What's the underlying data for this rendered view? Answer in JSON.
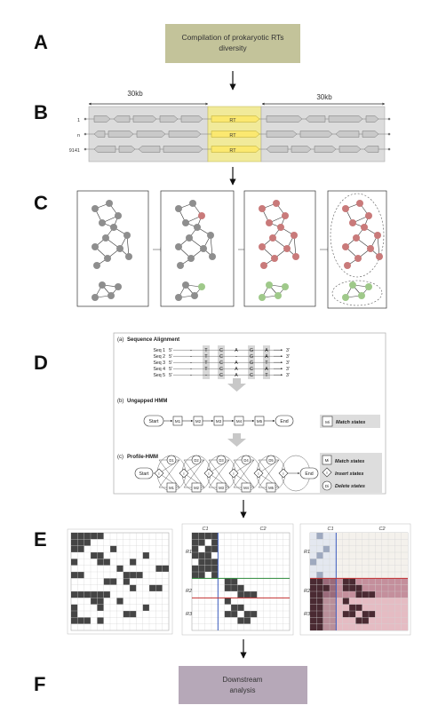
{
  "panels": {
    "a": {
      "letter": "A",
      "text_line1": "Compilation of prokaryotic RTs",
      "text_line2": "diversity",
      "box_color": "#c3c39a"
    },
    "b": {
      "letter": "B",
      "scale_left": "30kb",
      "scale_right": "30kb",
      "rows": [
        {
          "label": "1",
          "rt": "RT"
        },
        {
          "label": "n",
          "rt": "RT"
        },
        {
          "label": "9141",
          "rt": "RT"
        }
      ],
      "rt_color": "#f1ea9a"
    },
    "c": {
      "letter": "C"
    },
    "d": {
      "letter": "D",
      "sec_a": "(a)",
      "sec_a_title": "Sequence Alignment",
      "seqs": [
        {
          "name": "Seq 1",
          "five": "5'",
          "three": "3'",
          "bases": [
            "-",
            "T",
            "C",
            "A",
            "G",
            "A"
          ]
        },
        {
          "name": "Seq 2",
          "five": "5'",
          "three": "3'",
          "bases": [
            "-",
            "T",
            "C",
            "-",
            "G",
            "A"
          ]
        },
        {
          "name": "Seq 3",
          "five": "5'",
          "three": "3'",
          "bases": [
            "-",
            "T",
            "C",
            "A",
            "G",
            "T"
          ]
        },
        {
          "name": "Seq 4",
          "five": "5'",
          "three": "3'",
          "bases": [
            "-",
            "T",
            "C",
            "A",
            "C",
            "A"
          ]
        },
        {
          "name": "Seq 5",
          "five": "5'",
          "three": "3'",
          "bases": [
            "-",
            "-",
            "C",
            "A",
            "C",
            "T"
          ]
        }
      ],
      "sec_b": "(b)",
      "sec_b_title": "Ungapped HMM",
      "start": "Start",
      "end": "End",
      "m_states": [
        "M1",
        "M2",
        "M3",
        "M4",
        "M5"
      ],
      "d_states": [
        "D1",
        "D2",
        "D3",
        "D4",
        "D5"
      ],
      "legend_match_sym": "Mi",
      "legend_match": "Match states",
      "sec_c": "(c)",
      "sec_c_title": "Profile-HMM",
      "legend_insert_sym": "I",
      "legend_insert": "Insert states",
      "legend_delete_sym": "Di",
      "legend_delete": "Delete states"
    },
    "e": {
      "letter": "E",
      "c1": "C1",
      "c2": "C2",
      "r1": "R1",
      "r2": "R2",
      "r3": "R3"
    },
    "f": {
      "letter": "F",
      "text_line1": "Downstream",
      "text_line2": "analysis",
      "box_color": "#b6a8b8"
    }
  }
}
